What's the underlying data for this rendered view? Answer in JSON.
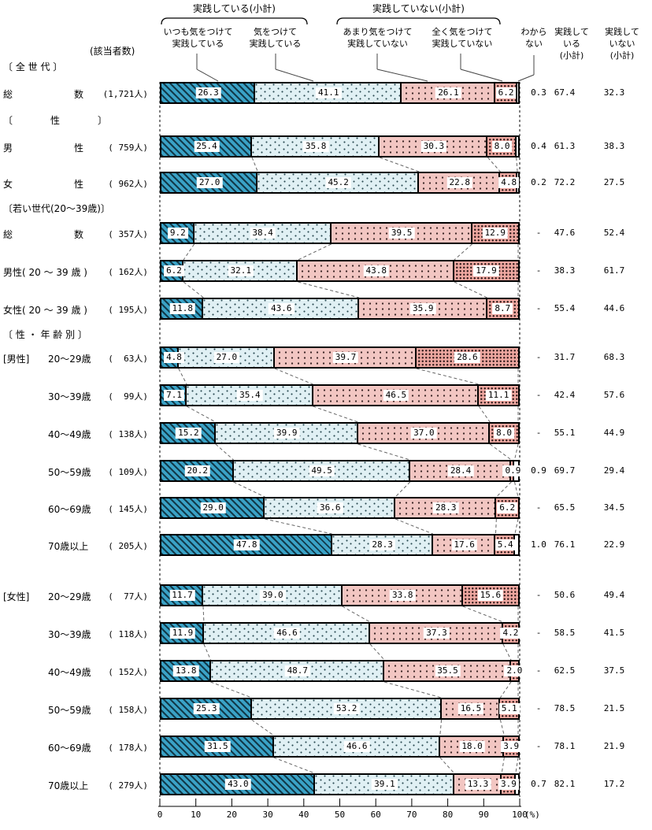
{
  "palette": {
    "seg1_base": "#3aa2c6",
    "seg1_stripe": "#123a4a",
    "seg2_base": "#e0f0f4",
    "seg3_base": "#f2c6c2",
    "seg4_base": "#eca69f",
    "border": "#000000",
    "connector": "#666666"
  },
  "header": {
    "bracket_yes": "実践している(小計)",
    "bracket_no": "実践していない(小計)",
    "respondents_label": "(該当者数)",
    "columns": [
      "いつも気をつけて\n実践している",
      "気をつけて\n実践している",
      "あまり気をつけて\n実践していない",
      "全く気をつけて\n実践していない",
      "わから\nない",
      "実践して\nいる\n(小計)",
      "実践して\nいない\n(小計)"
    ]
  },
  "chart_data": {
    "type": "bar",
    "stacked": true,
    "orientation": "horizontal",
    "unit": "%",
    "series_labels": [
      "いつも気をつけて実践している",
      "気をつけて実践している",
      "あまり気をつけて実践していない",
      "全く気をつけて実践していない",
      "わからない"
    ],
    "subtotal_labels": [
      "実践している(小計)",
      "実践していない(小計)"
    ],
    "x_axis": {
      "range": [
        0,
        100
      ],
      "ticks": [
        0,
        10,
        20,
        30,
        40,
        50,
        60,
        70,
        80,
        90,
        100
      ],
      "label": "(%)"
    },
    "rows": [
      {
        "type": "section",
        "label": "〔 全 世 代 〕"
      },
      {
        "type": "bar",
        "group": 0,
        "label": "総数",
        "justify": true,
        "n": "(1,721人)",
        "values": [
          26.3,
          41.1,
          26.1,
          6.2
        ],
        "dk": "0.3",
        "yes": "67.4",
        "no": "32.3"
      },
      {
        "type": "section",
        "label": "〔　　　　性　　　　〕"
      },
      {
        "type": "bar",
        "group": 1,
        "label": "男性",
        "justify": true,
        "n": "( 759人)",
        "values": [
          25.4,
          35.8,
          30.3,
          8.0
        ],
        "dk": "0.4",
        "yes": "61.3",
        "no": "38.3"
      },
      {
        "type": "bar",
        "group": 1,
        "label": "女性",
        "justify": true,
        "n": "( 962人)",
        "values": [
          27.0,
          45.2,
          22.8,
          4.8
        ],
        "dk": "0.2",
        "yes": "72.2",
        "no": "27.5"
      },
      {
        "type": "section",
        "label": "〔若い世代(20～39歳)〕"
      },
      {
        "type": "bar",
        "group": 2,
        "label": "総数",
        "justify": true,
        "n": "( 357人)",
        "values": [
          9.2,
          38.4,
          39.5,
          12.9
        ],
        "dk": "-",
        "yes": "47.6",
        "no": "52.4"
      },
      {
        "type": "bar",
        "group": 2,
        "label": "男性( 20 ～ 39 歳 )",
        "n": "( 162人)",
        "values": [
          6.2,
          32.1,
          43.8,
          17.9
        ],
        "dk": "-",
        "yes": "38.3",
        "no": "61.7"
      },
      {
        "type": "bar",
        "group": 2,
        "label": "女性( 20 ～ 39 歳 )",
        "n": "( 195人)",
        "values": [
          11.8,
          43.6,
          35.9,
          8.7
        ],
        "dk": "-",
        "yes": "55.4",
        "no": "44.6"
      },
      {
        "type": "section",
        "label": "〔 性 ・ 年 齢 別 〕"
      },
      {
        "type": "bar",
        "group": 3,
        "prefix": "[男性]",
        "age": true,
        "label": "20～29歳",
        "n": "(  63人)",
        "values": [
          4.8,
          27.0,
          39.7,
          28.6
        ],
        "dk": "-",
        "yes": "31.7",
        "no": "68.3"
      },
      {
        "type": "bar",
        "group": 3,
        "age": true,
        "label": "30～39歳",
        "n": "(  99人)",
        "values": [
          7.1,
          35.4,
          46.5,
          11.1
        ],
        "dk": "-",
        "yes": "42.4",
        "no": "57.6"
      },
      {
        "type": "bar",
        "group": 3,
        "age": true,
        "label": "40～49歳",
        "n": "( 138人)",
        "values": [
          15.2,
          39.9,
          37.0,
          8.0
        ],
        "dk": "-",
        "yes": "55.1",
        "no": "44.9"
      },
      {
        "type": "bar",
        "group": 3,
        "age": true,
        "label": "50～59歳",
        "n": "( 109人)",
        "values": [
          20.2,
          49.5,
          28.4,
          0.9
        ],
        "dk": "0.9",
        "yes": "69.7",
        "no": "29.4"
      },
      {
        "type": "bar",
        "group": 3,
        "age": true,
        "label": "60～69歳",
        "n": "( 145人)",
        "values": [
          29.0,
          36.6,
          28.3,
          6.2
        ],
        "dk": "-",
        "yes": "65.5",
        "no": "34.5"
      },
      {
        "type": "bar",
        "group": 3,
        "age": true,
        "label": "70歳以上",
        "n": "( 205人)",
        "values": [
          47.8,
          28.3,
          17.6,
          5.4
        ],
        "dk": "1.0",
        "yes": "76.1",
        "no": "22.9"
      },
      {
        "type": "bar",
        "group": 4,
        "prefix": "[女性]",
        "age": true,
        "label": "20～29歳",
        "n": "(  77人)",
        "values": [
          11.7,
          39.0,
          33.8,
          15.6
        ],
        "dk": "-",
        "yes": "50.6",
        "no": "49.4"
      },
      {
        "type": "bar",
        "group": 4,
        "age": true,
        "label": "30～39歳",
        "n": "( 118人)",
        "values": [
          11.9,
          46.6,
          37.3,
          4.2
        ],
        "dk": "-",
        "yes": "58.5",
        "no": "41.5"
      },
      {
        "type": "bar",
        "group": 4,
        "age": true,
        "label": "40～49歳",
        "n": "( 152人)",
        "values": [
          13.8,
          48.7,
          35.5,
          2.0
        ],
        "dk": "-",
        "yes": "62.5",
        "no": "37.5"
      },
      {
        "type": "bar",
        "group": 4,
        "age": true,
        "label": "50～59歳",
        "n": "( 158人)",
        "values": [
          25.3,
          53.2,
          16.5,
          5.1
        ],
        "dk": "-",
        "yes": "78.5",
        "no": "21.5"
      },
      {
        "type": "bar",
        "group": 4,
        "age": true,
        "label": "60～69歳",
        "n": "( 178人)",
        "values": [
          31.5,
          46.6,
          18.0,
          3.9
        ],
        "dk": "-",
        "yes": "78.1",
        "no": "21.9"
      },
      {
        "type": "bar",
        "group": 4,
        "age": true,
        "label": "70歳以上",
        "n": "( 279人)",
        "values": [
          43.0,
          39.1,
          13.3,
          3.9
        ],
        "dk": "0.7",
        "yes": "82.1",
        "no": "17.2"
      }
    ]
  }
}
